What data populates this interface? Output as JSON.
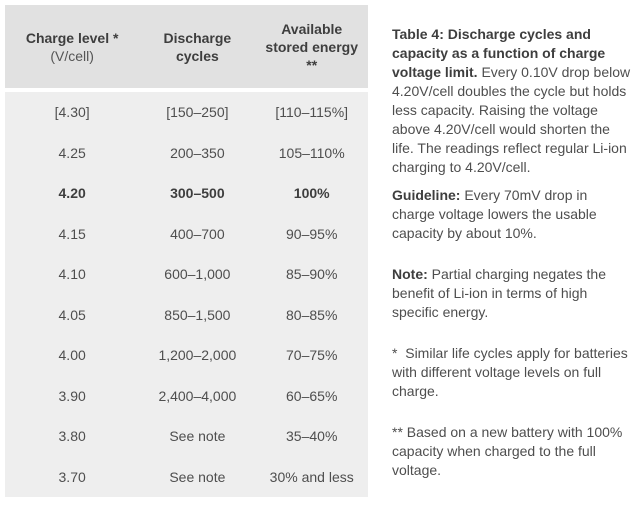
{
  "table": {
    "headers": {
      "charge_title": "Charge level *",
      "charge_sub": "(V/cell)",
      "cycles": "Discharge\ncycles",
      "energy": "Available\nstored energy\n**"
    },
    "rows": [
      {
        "charge": "[4.30]",
        "cycles": "[150–250]",
        "energy": "[110–115%]",
        "bold": false
      },
      {
        "charge": "4.25",
        "cycles": "200–350",
        "energy": "105–110%",
        "bold": false
      },
      {
        "charge": "4.20",
        "cycles": "300–500",
        "energy": "100%",
        "bold": true
      },
      {
        "charge": "4.15",
        "cycles": "400–700",
        "energy": "90–95%",
        "bold": false
      },
      {
        "charge": "4.10",
        "cycles": "600–1,000",
        "energy": "85–90%",
        "bold": false
      },
      {
        "charge": "4.05",
        "cycles": "850–1,500",
        "energy": "80–85%",
        "bold": false
      },
      {
        "charge": "4.00",
        "cycles": "1,200–2,000",
        "energy": "70–75%",
        "bold": false
      },
      {
        "charge": "3.90",
        "cycles": "2,400–4,000",
        "energy": "60–65%",
        "bold": false
      },
      {
        "charge": "3.80",
        "cycles": "See note",
        "energy": "35–40%",
        "bold": false
      },
      {
        "charge": "3.70",
        "cycles": "See note",
        "energy": "30% and less",
        "bold": false
      }
    ]
  },
  "caption": {
    "p1": {
      "bold": "Table 4: Discharge cycles and capacity as a function of charge voltage limit.",
      "rest": " Every 0.10V drop below 4.20V/cell doubles the cycle but holds less capacity. Raising the voltage above 4.20V/cell would shorten the life. The readings reflect regular Li-ion charging to 4.20V/cell."
    },
    "p2": {
      "bold": "Guideline:",
      "rest": " Every 70mV drop in charge voltage lowers the usable capacity by about 10%."
    },
    "p3": {
      "bold": "Note:",
      "rest": " Partial charging negates the benefit of Li-ion in terms of high specific energy."
    },
    "p4": {
      "rest": "*  Similar life cycles apply for batteries with different voltage levels on full charge."
    },
    "p5": {
      "rest": "** Based on a new battery with 100% capacity when charged to the full voltage."
    }
  },
  "colors": {
    "header_bg": "#e1e1e1",
    "body_bg": "#eeeeee",
    "text": "#4e4e4e",
    "bold_text": "#3e3e3e"
  }
}
